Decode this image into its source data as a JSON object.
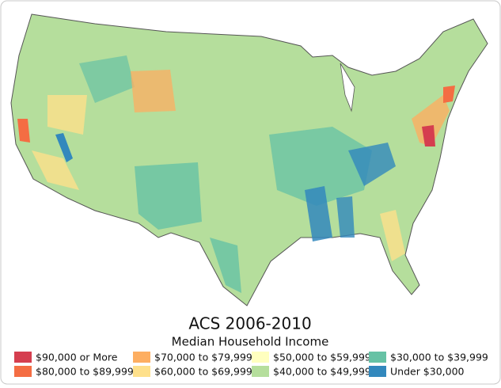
{
  "title": "ACS 2006-2010",
  "subtitle": "Median Household Income",
  "legend": [
    {
      "label": "$90,000 or More",
      "color": "#d53e4f"
    },
    {
      "label": "$80,000 to $89,999",
      "color": "#f46d43"
    },
    {
      "label": "$70,000 to $79,999",
      "color": "#fdae61"
    },
    {
      "label": "$60,000 to $69,999",
      "color": "#fee08b"
    },
    {
      "label": "$50,000 to $59,999",
      "color": "#ffffbf"
    },
    {
      "label": "$40,000 to $49,999",
      "color": "#b5de9c"
    },
    {
      "label": "$30,000 to $39,999",
      "color": "#66c2a5"
    },
    {
      "label": "Under $30,000",
      "color": "#3288bd"
    }
  ]
}
